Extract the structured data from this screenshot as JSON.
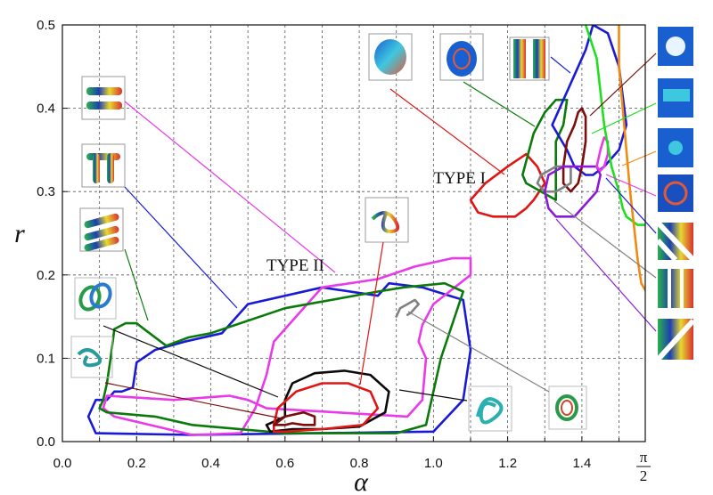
{
  "chart_data": {
    "type": "line",
    "title": "",
    "xlabel": "α",
    "ylabel": "r",
    "xlim": [
      0,
      1.5708
    ],
    "ylim": [
      0,
      0.5
    ],
    "grid": true,
    "x_ticks": [
      {
        "value": 0.0,
        "label": "0.0"
      },
      {
        "value": 0.2,
        "label": "0.2"
      },
      {
        "value": 0.4,
        "label": "0.4"
      },
      {
        "value": 0.6,
        "label": "0.6"
      },
      {
        "value": 0.8,
        "label": "0.8"
      },
      {
        "value": 1.0,
        "label": "1.0"
      },
      {
        "value": 1.2,
        "label": "1.2"
      },
      {
        "value": 1.4,
        "label": "1.4"
      }
    ],
    "x_end_label": {
      "num": "π",
      "den": "2"
    },
    "y_ticks": [
      {
        "value": 0.0,
        "label": "0.0"
      },
      {
        "value": 0.1,
        "label": "0.1"
      },
      {
        "value": 0.2,
        "label": "0.2"
      },
      {
        "value": 0.3,
        "label": "0.3"
      },
      {
        "value": 0.4,
        "label": "0.4"
      },
      {
        "value": 0.5,
        "label": "0.5"
      }
    ],
    "annotations": [
      {
        "text": "TYPE II",
        "x": 0.55,
        "y": 0.205
      },
      {
        "text": "TYPE I",
        "x": 1.0,
        "y": 0.31
      }
    ],
    "series": [
      {
        "color": "#1a1ad6",
        "closed": true,
        "points": [
          [
            0.09,
            0.05
          ],
          [
            0.07,
            0.03
          ],
          [
            0.09,
            0.01
          ],
          [
            0.35,
            0.008
          ],
          [
            1.0,
            0.012
          ],
          [
            1.08,
            0.05
          ],
          [
            1.1,
            0.11
          ],
          [
            1.08,
            0.17
          ],
          [
            0.97,
            0.185
          ],
          [
            0.88,
            0.19
          ],
          [
            0.85,
            0.175
          ],
          [
            0.7,
            0.185
          ],
          [
            0.5,
            0.165
          ],
          [
            0.43,
            0.13
          ],
          [
            0.33,
            0.12
          ],
          [
            0.25,
            0.11
          ],
          [
            0.2,
            0.095
          ],
          [
            0.19,
            0.065
          ],
          [
            0.16,
            0.06
          ],
          [
            0.14,
            0.06
          ],
          [
            0.12,
            0.05
          ]
        ]
      },
      {
        "color": "#e83ae8",
        "closed": true,
        "points": [
          [
            0.11,
            0.04
          ],
          [
            0.14,
            0.03
          ],
          [
            0.35,
            0.008
          ],
          [
            0.48,
            0.01
          ],
          [
            0.52,
            0.04
          ],
          [
            0.55,
            0.08
          ],
          [
            0.57,
            0.12
          ],
          [
            0.7,
            0.185
          ],
          [
            0.85,
            0.195
          ],
          [
            0.95,
            0.21
          ],
          [
            1.05,
            0.22
          ],
          [
            1.1,
            0.22
          ],
          [
            1.1,
            0.2
          ],
          [
            1.0,
            0.165
          ],
          [
            0.97,
            0.14
          ],
          [
            0.96,
            0.12
          ],
          [
            0.98,
            0.1
          ],
          [
            0.97,
            0.05
          ],
          [
            0.93,
            0.03
          ],
          [
            0.55,
            0.04
          ],
          [
            0.5,
            0.05
          ],
          [
            0.45,
            0.055
          ],
          [
            0.3,
            0.05
          ],
          [
            0.12,
            0.055
          ]
        ]
      },
      {
        "color": "#0a7a0a",
        "closed": true,
        "points": [
          [
            0.1,
            0.04
          ],
          [
            0.12,
            0.035
          ],
          [
            0.25,
            0.03
          ],
          [
            0.35,
            0.02
          ],
          [
            0.6,
            0.01
          ],
          [
            0.9,
            0.01
          ],
          [
            0.98,
            0.02
          ],
          [
            1.0,
            0.06
          ],
          [
            1.02,
            0.1
          ],
          [
            1.08,
            0.18
          ],
          [
            1.03,
            0.19
          ],
          [
            0.92,
            0.185
          ],
          [
            0.85,
            0.18
          ],
          [
            0.6,
            0.16
          ],
          [
            0.4,
            0.13
          ],
          [
            0.34,
            0.125
          ],
          [
            0.28,
            0.115
          ],
          [
            0.22,
            0.135
          ],
          [
            0.2,
            0.142
          ],
          [
            0.17,
            0.142
          ],
          [
            0.14,
            0.135
          ],
          [
            0.13,
            0.1
          ],
          [
            0.12,
            0.07
          ],
          [
            0.11,
            0.05
          ]
        ]
      },
      {
        "color": "#0a0a0a",
        "closed": true,
        "points": [
          [
            0.6,
            0.05
          ],
          [
            0.62,
            0.07
          ],
          [
            0.68,
            0.082
          ],
          [
            0.76,
            0.085
          ],
          [
            0.83,
            0.08
          ],
          [
            0.88,
            0.06
          ],
          [
            0.87,
            0.035
          ],
          [
            0.8,
            0.018
          ],
          [
            0.7,
            0.015
          ],
          [
            0.62,
            0.015
          ],
          [
            0.56,
            0.012
          ],
          [
            0.55,
            0.02
          ],
          [
            0.6,
            0.03
          ]
        ]
      },
      {
        "color": "#e01515",
        "closed": true,
        "points": [
          [
            0.57,
            0.02
          ],
          [
            0.58,
            0.04
          ],
          [
            0.63,
            0.06
          ],
          [
            0.7,
            0.07
          ],
          [
            0.77,
            0.07
          ],
          [
            0.83,
            0.06
          ],
          [
            0.85,
            0.04
          ],
          [
            0.81,
            0.02
          ],
          [
            0.7,
            0.015
          ],
          [
            0.6,
            0.012
          ],
          [
            0.57,
            0.012
          ]
        ]
      },
      {
        "color": "#7a0d0d",
        "closed": true,
        "points": [
          [
            0.57,
            0.02
          ],
          [
            0.6,
            0.03
          ],
          [
            0.65,
            0.035
          ],
          [
            0.68,
            0.03
          ],
          [
            0.68,
            0.02
          ],
          [
            0.65,
            0.02
          ],
          [
            0.62,
            0.022
          ],
          [
            0.6,
            0.02
          ]
        ]
      },
      {
        "color": "#808080",
        "closed": false,
        "points": [
          [
            0.9,
            0.15
          ],
          [
            0.91,
            0.16
          ],
          [
            0.93,
            0.165
          ],
          [
            0.95,
            0.17
          ],
          [
            0.96,
            0.165
          ],
          [
            0.94,
            0.155
          ],
          [
            0.93,
            0.152
          ]
        ]
      },
      {
        "color": "#e01515",
        "closed": true,
        "points": [
          [
            1.1,
            0.29
          ],
          [
            1.14,
            0.31
          ],
          [
            1.2,
            0.33
          ],
          [
            1.25,
            0.345
          ],
          [
            1.28,
            0.33
          ],
          [
            1.3,
            0.31
          ],
          [
            1.27,
            0.29
          ],
          [
            1.25,
            0.28
          ],
          [
            1.22,
            0.27
          ],
          [
            1.16,
            0.27
          ],
          [
            1.12,
            0.275
          ]
        ]
      },
      {
        "color": "#0a7a0a",
        "closed": true,
        "points": [
          [
            1.24,
            0.32
          ],
          [
            1.27,
            0.37
          ],
          [
            1.3,
            0.395
          ],
          [
            1.33,
            0.41
          ],
          [
            1.36,
            0.41
          ],
          [
            1.35,
            0.38
          ],
          [
            1.33,
            0.36
          ],
          [
            1.33,
            0.32
          ],
          [
            1.33,
            0.29
          ],
          [
            1.29,
            0.3
          ],
          [
            1.25,
            0.31
          ]
        ]
      },
      {
        "color": "#1a1ad6",
        "closed": true,
        "points": [
          [
            1.32,
            0.38
          ],
          [
            1.35,
            0.41
          ],
          [
            1.38,
            0.44
          ],
          [
            1.41,
            0.47
          ],
          [
            1.43,
            0.5
          ],
          [
            1.47,
            0.49
          ],
          [
            1.5,
            0.45
          ],
          [
            1.52,
            0.38
          ],
          [
            1.5,
            0.35
          ],
          [
            1.46,
            0.33
          ],
          [
            1.43,
            0.32
          ],
          [
            1.41,
            0.32
          ],
          [
            1.38,
            0.33
          ],
          [
            1.36,
            0.35
          ]
        ]
      },
      {
        "color": "#7a0d0d",
        "closed": true,
        "points": [
          [
            1.35,
            0.33
          ],
          [
            1.36,
            0.36
          ],
          [
            1.38,
            0.38
          ],
          [
            1.39,
            0.395
          ],
          [
            1.4,
            0.4
          ],
          [
            1.41,
            0.39
          ],
          [
            1.41,
            0.36
          ],
          [
            1.4,
            0.33
          ],
          [
            1.39,
            0.31
          ],
          [
            1.37,
            0.3
          ],
          [
            1.35,
            0.31
          ]
        ]
      },
      {
        "color": "#808080",
        "closed": true,
        "points": [
          [
            1.29,
            0.32
          ],
          [
            1.33,
            0.33
          ],
          [
            1.37,
            0.33
          ],
          [
            1.37,
            0.31
          ],
          [
            1.33,
            0.3
          ],
          [
            1.3,
            0.3
          ],
          [
            1.28,
            0.31
          ]
        ]
      },
      {
        "color": "#8a1ad6",
        "closed": true,
        "points": [
          [
            1.31,
            0.28
          ],
          [
            1.3,
            0.3
          ],
          [
            1.31,
            0.32
          ],
          [
            1.35,
            0.33
          ],
          [
            1.4,
            0.33
          ],
          [
            1.44,
            0.33
          ],
          [
            1.45,
            0.32
          ],
          [
            1.44,
            0.3
          ],
          [
            1.42,
            0.29
          ],
          [
            1.38,
            0.27
          ],
          [
            1.33,
            0.27
          ]
        ]
      },
      {
        "color": "#e83ae8",
        "closed": true,
        "points": [
          [
            1.44,
            0.33
          ],
          [
            1.45,
            0.35
          ],
          [
            1.46,
            0.365
          ],
          [
            1.47,
            0.36
          ],
          [
            1.47,
            0.345
          ],
          [
            1.46,
            0.33
          ],
          [
            1.45,
            0.325
          ]
        ]
      },
      {
        "color": "#1fe01f",
        "closed": false,
        "points": [
          [
            1.41,
            0.5
          ],
          [
            1.44,
            0.46
          ],
          [
            1.45,
            0.42
          ],
          [
            1.46,
            0.38
          ],
          [
            1.48,
            0.33
          ],
          [
            1.5,
            0.3
          ],
          [
            1.51,
            0.28
          ],
          [
            1.52,
            0.27
          ],
          [
            1.55,
            0.26
          ],
          [
            1.58,
            0.26
          ]
        ]
      },
      {
        "color": "#f08a10",
        "closed": false,
        "points": [
          [
            1.5,
            0.5
          ],
          [
            1.5,
            0.45
          ],
          [
            1.51,
            0.4
          ],
          [
            1.52,
            0.35
          ],
          [
            1.53,
            0.3
          ],
          [
            1.54,
            0.26
          ],
          [
            1.55,
            0.22
          ],
          [
            1.56,
            0.19
          ],
          [
            1.58,
            0.175
          ],
          [
            1.6,
            0.175
          ]
        ]
      }
    ]
  }
}
